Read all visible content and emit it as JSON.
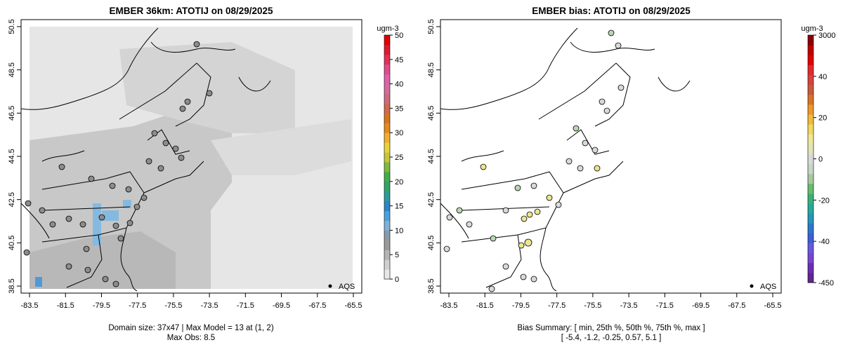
{
  "left_panel": {
    "title": "EMBER 36km: ATOTIJ on 08/29/2025",
    "x_ticks": [
      "-83.5",
      "-81.5",
      "-79.5",
      "-77.5",
      "-75.5",
      "-73.5",
      "-71.5",
      "-69.5",
      "-67.5",
      "-65.5"
    ],
    "y_ticks": [
      "38.5",
      "40.5",
      "42.5",
      "44.5",
      "46.5",
      "48.5",
      "50.5"
    ],
    "colorbar": {
      "unit": "ugm-3",
      "labels": [
        "0",
        "5",
        "10",
        "15",
        "20",
        "25",
        "30",
        "35",
        "40",
        "45",
        "50"
      ]
    },
    "legend_label": "AQS",
    "footer_line1": "Domain size: 37x47 | Max Model = 13 at (1, 2)",
    "footer_line2": "Max Obs: 8.5"
  },
  "right_panel": {
    "title": "EMBER bias: ATOTIJ on 08/29/2025",
    "x_ticks": [
      "-83.5",
      "-81.5",
      "-79.5",
      "-77.5",
      "-75.5",
      "-73.5",
      "-71.5",
      "-69.5",
      "-67.5",
      "-65.5"
    ],
    "y_ticks": [
      "38.5",
      "40.5",
      "42.5",
      "44.5",
      "46.5",
      "48.5",
      "50.5"
    ],
    "colorbar": {
      "unit": "ugm-3",
      "labels": [
        "3000",
        "40",
        "20",
        "0",
        "-20",
        "-40",
        "-450"
      ]
    },
    "legend_label": "AQS",
    "footer_line1": "Bias Summary: [ min, 25th %, 50th %, 75th %, max ]",
    "footer_line2": "[ -5.4,   -1.2,   -0.25,   0.57,   5.1 ]"
  },
  "colors": {
    "background": "#ffffff",
    "grid_high": "#c8c8c8",
    "grid_mid": "#d4d4d4",
    "grid_low": "#e6e6e6",
    "grid_blue": "#86b9e0",
    "site_gray": "#8c8c8c",
    "site_bias_neutral": "#d9d9d9",
    "site_bias_yellow": "#ece58f",
    "site_bias_green": "#b8d8b0"
  }
}
